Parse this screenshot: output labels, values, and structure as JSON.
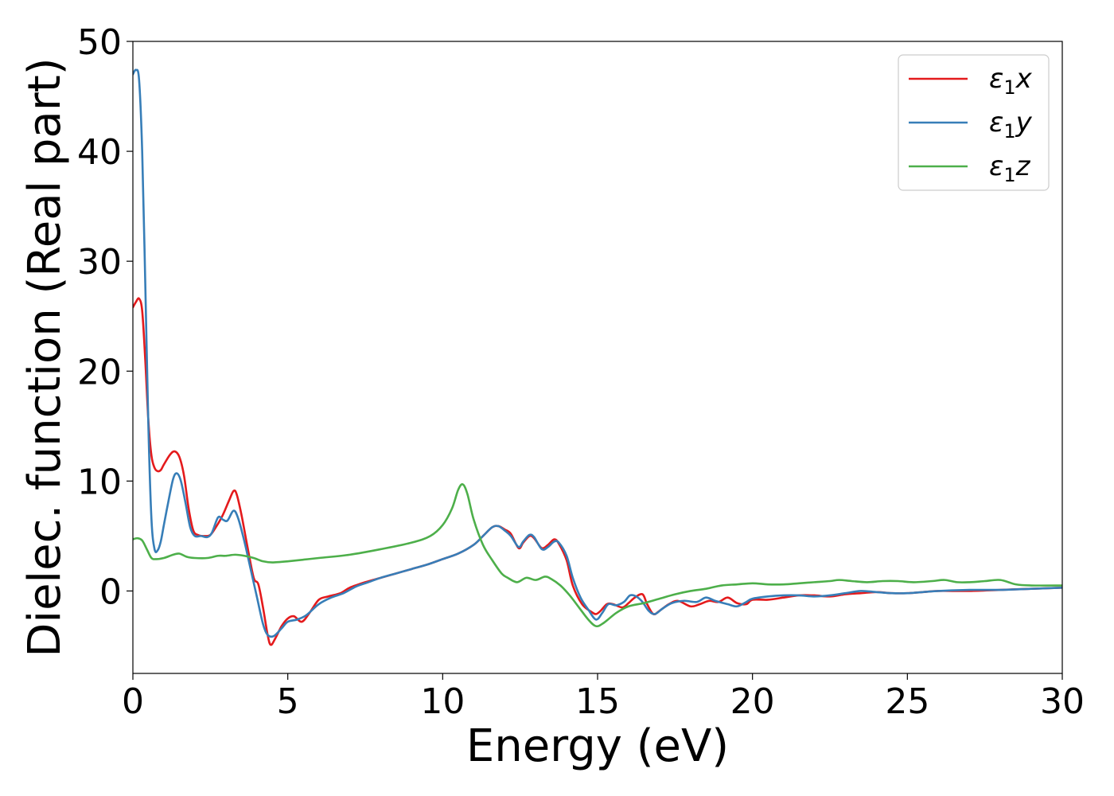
{
  "chart_data": {
    "type": "line",
    "title": "",
    "xlabel": "Energy (eV)",
    "ylabel": "Dielec. function (Real part)",
    "xlim": [
      0,
      30
    ],
    "ylim": [
      -7.5,
      50
    ],
    "xticks": [
      0,
      5,
      10,
      15,
      20,
      25,
      30
    ],
    "yticks": [
      0,
      10,
      20,
      30,
      40,
      50
    ],
    "grid": false,
    "legend_position": "top-right",
    "series": [
      {
        "name": "ε₁x",
        "label_main": "ε",
        "label_sub": "1",
        "label_tail": "x",
        "color": "#e41a1c",
        "points": [
          [
            0,
            25.8
          ],
          [
            0.1,
            26.3
          ],
          [
            0.2,
            26.6
          ],
          [
            0.3,
            25.5
          ],
          [
            0.4,
            21.0
          ],
          [
            0.5,
            15.5
          ],
          [
            0.6,
            12.3
          ],
          [
            0.7,
            11.2
          ],
          [
            0.8,
            10.9
          ],
          [
            0.9,
            11.0
          ],
          [
            1.0,
            11.5
          ],
          [
            1.2,
            12.4
          ],
          [
            1.35,
            12.7
          ],
          [
            1.5,
            12.2
          ],
          [
            1.65,
            10.5
          ],
          [
            1.8,
            7.5
          ],
          [
            1.95,
            5.5
          ],
          [
            2.1,
            5.1
          ],
          [
            2.3,
            5.0
          ],
          [
            2.5,
            5.1
          ],
          [
            2.7,
            5.9
          ],
          [
            2.9,
            6.9
          ],
          [
            3.1,
            8.2
          ],
          [
            3.25,
            9.1
          ],
          [
            3.35,
            8.8
          ],
          [
            3.5,
            7.0
          ],
          [
            3.7,
            4.0
          ],
          [
            3.9,
            1.2
          ],
          [
            4.05,
            0.6
          ],
          [
            4.2,
            -1.5
          ],
          [
            4.35,
            -4.0
          ],
          [
            4.45,
            -4.9
          ],
          [
            4.6,
            -4.3
          ],
          [
            4.8,
            -3.2
          ],
          [
            5.0,
            -2.5
          ],
          [
            5.2,
            -2.3
          ],
          [
            5.45,
            -2.8
          ],
          [
            5.7,
            -2.0
          ],
          [
            6.0,
            -0.8
          ],
          [
            6.3,
            -0.5
          ],
          [
            6.7,
            -0.2
          ],
          [
            7.0,
            0.3
          ],
          [
            7.5,
            0.8
          ],
          [
            8.0,
            1.2
          ],
          [
            8.5,
            1.6
          ],
          [
            9.0,
            2.0
          ],
          [
            9.5,
            2.4
          ],
          [
            10.0,
            2.9
          ],
          [
            10.5,
            3.4
          ],
          [
            11.0,
            4.2
          ],
          [
            11.3,
            5.0
          ],
          [
            11.6,
            5.8
          ],
          [
            11.8,
            5.9
          ],
          [
            12.0,
            5.6
          ],
          [
            12.2,
            5.2
          ],
          [
            12.45,
            3.9
          ],
          [
            12.6,
            4.4
          ],
          [
            12.8,
            5.0
          ],
          [
            12.95,
            4.8
          ],
          [
            13.2,
            3.9
          ],
          [
            13.4,
            4.2
          ],
          [
            13.6,
            4.7
          ],
          [
            13.75,
            4.3
          ],
          [
            14.0,
            2.8
          ],
          [
            14.2,
            0.5
          ],
          [
            14.5,
            -1.2
          ],
          [
            14.8,
            -1.9
          ],
          [
            14.95,
            -2.1
          ],
          [
            15.1,
            -1.8
          ],
          [
            15.3,
            -1.2
          ],
          [
            15.5,
            -1.2
          ],
          [
            15.8,
            -1.5
          ],
          [
            16.0,
            -1.1
          ],
          [
            16.2,
            -0.6
          ],
          [
            16.45,
            -0.3
          ],
          [
            16.6,
            -1.2
          ],
          [
            16.8,
            -2.1
          ],
          [
            17.0,
            -1.8
          ],
          [
            17.3,
            -1.2
          ],
          [
            17.6,
            -0.9
          ],
          [
            18.0,
            -1.4
          ],
          [
            18.3,
            -1.2
          ],
          [
            18.6,
            -0.9
          ],
          [
            18.9,
            -1.0
          ],
          [
            19.2,
            -0.6
          ],
          [
            19.5,
            -1.1
          ],
          [
            19.8,
            -1.2
          ],
          [
            20.0,
            -0.8
          ],
          [
            20.5,
            -0.8
          ],
          [
            21.0,
            -0.6
          ],
          [
            21.5,
            -0.4
          ],
          [
            22.0,
            -0.4
          ],
          [
            22.5,
            -0.5
          ],
          [
            23.0,
            -0.3
          ],
          [
            23.5,
            -0.2
          ],
          [
            24.0,
            -0.1
          ],
          [
            24.5,
            -0.2
          ],
          [
            25.0,
            -0.2
          ],
          [
            25.5,
            -0.1
          ],
          [
            26.0,
            0.0
          ],
          [
            27.0,
            0.0
          ],
          [
            28.0,
            0.1
          ],
          [
            29.0,
            0.2
          ],
          [
            30.0,
            0.3
          ]
        ]
      },
      {
        "name": "ε₁y",
        "label_main": "ε",
        "label_sub": "1",
        "label_tail": "y",
        "color": "#377eb8",
        "points": [
          [
            0,
            47.0
          ],
          [
            0.1,
            47.4
          ],
          [
            0.2,
            46.5
          ],
          [
            0.3,
            40.0
          ],
          [
            0.4,
            28.0
          ],
          [
            0.5,
            15.0
          ],
          [
            0.6,
            6.5
          ],
          [
            0.7,
            3.8
          ],
          [
            0.8,
            3.7
          ],
          [
            0.9,
            4.5
          ],
          [
            1.0,
            6.0
          ],
          [
            1.15,
            8.2
          ],
          [
            1.3,
            10.2
          ],
          [
            1.42,
            10.7
          ],
          [
            1.55,
            10.0
          ],
          [
            1.7,
            8.0
          ],
          [
            1.85,
            5.8
          ],
          [
            2.0,
            5.0
          ],
          [
            2.2,
            5.0
          ],
          [
            2.4,
            4.9
          ],
          [
            2.55,
            5.3
          ],
          [
            2.75,
            6.7
          ],
          [
            2.9,
            6.5
          ],
          [
            3.05,
            6.4
          ],
          [
            3.25,
            7.3
          ],
          [
            3.4,
            6.6
          ],
          [
            3.6,
            4.5
          ],
          [
            3.8,
            2.0
          ],
          [
            4.0,
            -0.5
          ],
          [
            4.2,
            -3.0
          ],
          [
            4.35,
            -4.0
          ],
          [
            4.55,
            -4.1
          ],
          [
            4.8,
            -3.4
          ],
          [
            5.0,
            -2.8
          ],
          [
            5.3,
            -2.6
          ],
          [
            5.6,
            -2.2
          ],
          [
            6.0,
            -1.2
          ],
          [
            6.4,
            -0.6
          ],
          [
            6.8,
            -0.2
          ],
          [
            7.2,
            0.4
          ],
          [
            7.6,
            0.8
          ],
          [
            8.0,
            1.2
          ],
          [
            8.5,
            1.6
          ],
          [
            9.0,
            2.0
          ],
          [
            9.5,
            2.4
          ],
          [
            10.0,
            2.9
          ],
          [
            10.5,
            3.4
          ],
          [
            11.0,
            4.2
          ],
          [
            11.3,
            5.0
          ],
          [
            11.6,
            5.8
          ],
          [
            11.8,
            5.9
          ],
          [
            12.0,
            5.5
          ],
          [
            12.2,
            5.0
          ],
          [
            12.45,
            4.0
          ],
          [
            12.6,
            4.5
          ],
          [
            12.8,
            5.1
          ],
          [
            12.95,
            4.9
          ],
          [
            13.2,
            3.8
          ],
          [
            13.4,
            4.0
          ],
          [
            13.6,
            4.5
          ],
          [
            13.75,
            4.4
          ],
          [
            14.0,
            3.2
          ],
          [
            14.2,
            1.2
          ],
          [
            14.45,
            -0.6
          ],
          [
            14.7,
            -1.7
          ],
          [
            14.95,
            -2.6
          ],
          [
            15.15,
            -2.0
          ],
          [
            15.35,
            -1.2
          ],
          [
            15.6,
            -1.3
          ],
          [
            15.85,
            -1.0
          ],
          [
            16.05,
            -0.4
          ],
          [
            16.25,
            -0.5
          ],
          [
            16.45,
            -1.0
          ],
          [
            16.65,
            -1.8
          ],
          [
            16.85,
            -2.1
          ],
          [
            17.1,
            -1.6
          ],
          [
            17.4,
            -1.1
          ],
          [
            17.8,
            -0.9
          ],
          [
            18.2,
            -1.0
          ],
          [
            18.5,
            -0.6
          ],
          [
            18.8,
            -0.9
          ],
          [
            19.2,
            -1.2
          ],
          [
            19.5,
            -1.4
          ],
          [
            19.8,
            -1.0
          ],
          [
            20.0,
            -0.7
          ],
          [
            20.5,
            -0.5
          ],
          [
            21.0,
            -0.4
          ],
          [
            21.5,
            -0.4
          ],
          [
            22.0,
            -0.5
          ],
          [
            22.5,
            -0.4
          ],
          [
            23.0,
            -0.2
          ],
          [
            23.5,
            0.0
          ],
          [
            24.0,
            -0.1
          ],
          [
            24.5,
            -0.2
          ],
          [
            25.0,
            -0.2
          ],
          [
            25.5,
            -0.1
          ],
          [
            26.0,
            0.0
          ],
          [
            27.0,
            0.1
          ],
          [
            28.0,
            0.1
          ],
          [
            29.0,
            0.2
          ],
          [
            30.0,
            0.3
          ]
        ]
      },
      {
        "name": "ε₁z",
        "label_main": "ε",
        "label_sub": "1",
        "label_tail": "z",
        "color": "#4daf4a",
        "points": [
          [
            0,
            4.7
          ],
          [
            0.15,
            4.8
          ],
          [
            0.3,
            4.6
          ],
          [
            0.45,
            3.8
          ],
          [
            0.6,
            3.0
          ],
          [
            0.75,
            2.9
          ],
          [
            1.0,
            3.0
          ],
          [
            1.3,
            3.3
          ],
          [
            1.5,
            3.4
          ],
          [
            1.75,
            3.1
          ],
          [
            2.0,
            3.0
          ],
          [
            2.4,
            3.0
          ],
          [
            2.75,
            3.2
          ],
          [
            3.0,
            3.2
          ],
          [
            3.3,
            3.3
          ],
          [
            3.6,
            3.2
          ],
          [
            3.9,
            3.0
          ],
          [
            4.2,
            2.7
          ],
          [
            4.5,
            2.6
          ],
          [
            5.0,
            2.7
          ],
          [
            6.0,
            3.0
          ],
          [
            7.0,
            3.3
          ],
          [
            8.0,
            3.8
          ],
          [
            9.0,
            4.4
          ],
          [
            9.6,
            5.0
          ],
          [
            10.0,
            6.0
          ],
          [
            10.3,
            7.5
          ],
          [
            10.5,
            9.2
          ],
          [
            10.65,
            9.7
          ],
          [
            10.8,
            8.8
          ],
          [
            11.0,
            6.5
          ],
          [
            11.3,
            4.2
          ],
          [
            11.6,
            2.8
          ],
          [
            11.9,
            1.6
          ],
          [
            12.1,
            1.2
          ],
          [
            12.4,
            0.8
          ],
          [
            12.7,
            1.2
          ],
          [
            13.0,
            1.0
          ],
          [
            13.3,
            1.3
          ],
          [
            13.5,
            1.1
          ],
          [
            13.8,
            0.5
          ],
          [
            14.1,
            -0.4
          ],
          [
            14.4,
            -1.5
          ],
          [
            14.7,
            -2.6
          ],
          [
            14.95,
            -3.2
          ],
          [
            15.2,
            -2.9
          ],
          [
            15.6,
            -2.0
          ],
          [
            16.0,
            -1.4
          ],
          [
            16.5,
            -1.1
          ],
          [
            17.0,
            -0.7
          ],
          [
            17.5,
            -0.3
          ],
          [
            18.0,
            0.0
          ],
          [
            18.5,
            0.2
          ],
          [
            19.0,
            0.5
          ],
          [
            19.5,
            0.6
          ],
          [
            20.0,
            0.7
          ],
          [
            20.5,
            0.6
          ],
          [
            21.0,
            0.6
          ],
          [
            21.5,
            0.7
          ],
          [
            22.0,
            0.8
          ],
          [
            22.5,
            0.9
          ],
          [
            22.8,
            1.0
          ],
          [
            23.2,
            0.9
          ],
          [
            23.7,
            0.8
          ],
          [
            24.2,
            0.9
          ],
          [
            24.7,
            0.9
          ],
          [
            25.2,
            0.8
          ],
          [
            25.8,
            0.9
          ],
          [
            26.2,
            1.0
          ],
          [
            26.6,
            0.8
          ],
          [
            27.0,
            0.8
          ],
          [
            27.5,
            0.9
          ],
          [
            28.0,
            1.0
          ],
          [
            28.5,
            0.6
          ],
          [
            29.0,
            0.5
          ],
          [
            30.0,
            0.5
          ]
        ]
      }
    ]
  }
}
